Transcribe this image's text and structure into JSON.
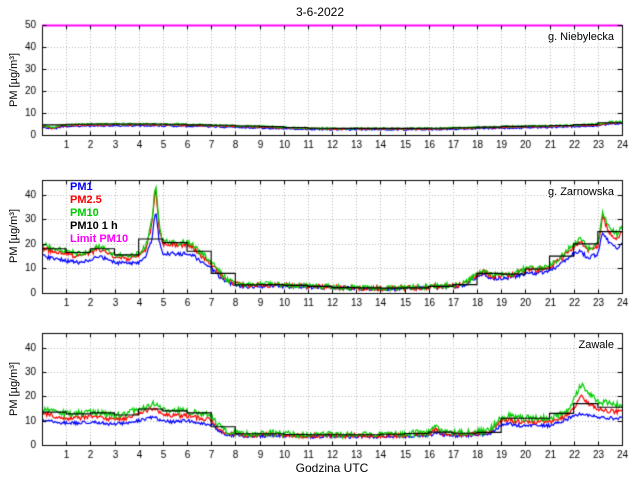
{
  "title": "3-6-2022",
  "xlabel": "Godzina UTC",
  "ylabel": "PM [µg/m³]",
  "legend": {
    "items": [
      {
        "label": "PM1",
        "color": "#0000ff"
      },
      {
        "label": "PM2.5",
        "color": "#ff0000"
      },
      {
        "label": "PM10",
        "color": "#00cc00"
      },
      {
        "label": "PM10 1 h",
        "color": "#000000"
      },
      {
        "label": "Limit PM10",
        "color": "#ff00ff"
      }
    ]
  },
  "chart_data": [
    {
      "type": "line",
      "station": "g. Niebylecka",
      "xlim": [
        0,
        24
      ],
      "ylim": [
        0,
        50
      ],
      "xticks": [
        1,
        2,
        3,
        4,
        5,
        6,
        7,
        8,
        9,
        10,
        11,
        12,
        13,
        14,
        15,
        16,
        17,
        18,
        19,
        20,
        21,
        22,
        23,
        24
      ],
      "yticks": [
        0,
        10,
        20,
        30,
        40,
        50
      ],
      "grid": true,
      "series": [
        {
          "name": "PM1",
          "color": "#0000ff",
          "noise": 0.35,
          "x": [
            0,
            0.5,
            0.8,
            1,
            2,
            3,
            4,
            5,
            6,
            7,
            8,
            9,
            10,
            11,
            12,
            13,
            14,
            15,
            16,
            17,
            18,
            19,
            20,
            21,
            22,
            23,
            23.5,
            24
          ],
          "values": [
            3.8,
            2.7,
            3.8,
            3.9,
            4.2,
            4.2,
            4.2,
            4.2,
            4,
            3.8,
            3.5,
            3.3,
            2.9,
            2.7,
            2.5,
            2.5,
            2.5,
            2.5,
            2.5,
            2.7,
            2.9,
            3.1,
            3.3,
            3.5,
            3.8,
            4.2,
            5,
            5.2
          ]
        },
        {
          "name": "PM2.5",
          "color": "#ff0000",
          "noise": 0.35,
          "x": [
            0,
            0.5,
            0.8,
            1,
            2,
            3,
            4,
            5,
            6,
            7,
            8,
            9,
            10,
            11,
            12,
            13,
            14,
            15,
            16,
            17,
            18,
            19,
            20,
            21,
            22,
            23,
            23.5,
            24
          ],
          "values": [
            4.2,
            3,
            4.2,
            4.3,
            4.6,
            4.6,
            4.6,
            4.6,
            4.4,
            4.2,
            3.9,
            3.7,
            3.2,
            3,
            2.8,
            2.8,
            2.8,
            2.8,
            2.8,
            3,
            3.2,
            3.5,
            3.7,
            3.9,
            4.2,
            4.6,
            5.5,
            5.6
          ]
        },
        {
          "name": "PM10",
          "color": "#00cc00",
          "noise": 0.4,
          "x": [
            0,
            0.5,
            0.8,
            1,
            2,
            3,
            4,
            5,
            6,
            7,
            8,
            9,
            10,
            11,
            12,
            13,
            14,
            15,
            16,
            17,
            18,
            19,
            20,
            21,
            22,
            23,
            23.5,
            24
          ],
          "values": [
            4.5,
            3.2,
            4.5,
            4.6,
            5,
            5,
            5,
            5,
            4.8,
            4.5,
            4.2,
            4,
            3.5,
            3.2,
            3,
            3,
            3,
            3,
            3,
            3.2,
            3.5,
            3.8,
            4,
            4.2,
            4.5,
            5,
            6,
            6
          ]
        },
        {
          "name": "PM10 1 h",
          "type": "step",
          "color": "#000000",
          "hourly": [
            4.6,
            4.9,
            5,
            5,
            5,
            4.9,
            4.6,
            4.4,
            4.1,
            3.8,
            3.4,
            3.1,
            3,
            3,
            3,
            3,
            3.1,
            3.3,
            3.6,
            3.9,
            4.1,
            4.3,
            4.7,
            5.6
          ]
        },
        {
          "name": "Limit PM10",
          "type": "hline",
          "color": "#ff00ff",
          "value": 50
        }
      ]
    },
    {
      "type": "line",
      "station": "g. Zarnowska",
      "xlim": [
        0,
        24
      ],
      "ylim": [
        0,
        46
      ],
      "xticks": [
        1,
        2,
        3,
        4,
        5,
        6,
        7,
        8,
        9,
        10,
        11,
        12,
        13,
        14,
        15,
        16,
        17,
        18,
        19,
        20,
        21,
        22,
        23,
        24
      ],
      "yticks": [
        0,
        10,
        20,
        30,
        40
      ],
      "grid": true,
      "series": [
        {
          "name": "PM1",
          "color": "#0000ff",
          "noise": 0.8,
          "x": [
            0,
            0.5,
            1,
            1.5,
            2,
            2.3,
            2.6,
            3,
            3.5,
            4,
            4.3,
            4.55,
            4.7,
            4.85,
            5,
            5.3,
            5.6,
            6,
            6.3,
            6.6,
            7,
            7.3,
            7.6,
            8,
            8.5,
            9,
            9.5,
            10,
            10.5,
            11,
            11.5,
            12,
            12.5,
            13,
            13.5,
            14,
            14.5,
            15,
            15.5,
            16,
            16.5,
            17,
            17.5,
            18,
            18.3,
            18.6,
            19,
            19.5,
            20,
            20.5,
            21,
            21.5,
            22,
            22.3,
            22.6,
            23,
            23.2,
            23.5,
            23.8,
            24
          ],
          "values": [
            15,
            14,
            13,
            12.5,
            13,
            15,
            14,
            12.5,
            12,
            12.5,
            15,
            22,
            34,
            21,
            16,
            16,
            16,
            16,
            15,
            12.5,
            10,
            7,
            4.5,
            3.2,
            2.6,
            2.8,
            2.8,
            2.8,
            2.6,
            2.4,
            2.3,
            2.1,
            1.9,
            1.8,
            1.7,
            1.7,
            1.7,
            1.8,
            1.9,
            2.1,
            2.4,
            2.6,
            3.2,
            6.5,
            7.5,
            6,
            6,
            6.5,
            8,
            8,
            9,
            12,
            16,
            17,
            14,
            16,
            25,
            20,
            18,
            20
          ]
        },
        {
          "name": "PM2.5",
          "color": "#ff0000",
          "noise": 1.0,
          "x": [
            0,
            0.5,
            1,
            1.5,
            2,
            2.3,
            2.6,
            3,
            3.5,
            4,
            4.3,
            4.55,
            4.7,
            4.85,
            5,
            5.3,
            5.6,
            6,
            6.3,
            6.6,
            7,
            7.3,
            7.6,
            8,
            8.5,
            9,
            9.5,
            10,
            10.5,
            11,
            11.5,
            12,
            12.5,
            13,
            13.5,
            14,
            14.5,
            15,
            15.5,
            16,
            16.5,
            17,
            17.5,
            18,
            18.3,
            18.6,
            19,
            19.5,
            20,
            20.5,
            21,
            21.5,
            22,
            22.3,
            22.6,
            23,
            23.2,
            23.5,
            23.8,
            24
          ],
          "values": [
            18,
            17,
            16,
            15,
            16,
            18,
            17,
            15,
            14,
            15,
            18,
            28,
            43,
            26,
            20,
            20,
            19,
            20,
            18,
            15,
            12,
            8.5,
            5.5,
            3.7,
            3,
            3.2,
            3.2,
            3.2,
            3,
            2.8,
            2.6,
            2.4,
            2.2,
            2,
            1.9,
            1.9,
            1.9,
            2,
            2.2,
            2.4,
            2.8,
            3,
            3.7,
            7.5,
            8.5,
            7,
            7,
            7.5,
            9.5,
            9.5,
            10.5,
            14,
            19,
            21,
            17,
            19,
            31,
            24,
            22,
            25
          ]
        },
        {
          "name": "PM10",
          "color": "#00cc00",
          "noise": 1.1,
          "x": [
            0,
            0.5,
            1,
            1.5,
            2,
            2.3,
            2.6,
            3,
            3.5,
            4,
            4.3,
            4.55,
            4.7,
            4.85,
            5,
            5.3,
            5.6,
            6,
            6.3,
            6.6,
            7,
            7.3,
            7.6,
            8,
            8.5,
            9,
            9.5,
            10,
            10.5,
            11,
            11.5,
            12,
            12.5,
            13,
            13.5,
            14,
            14.5,
            15,
            15.5,
            16,
            16.5,
            17,
            17.5,
            18,
            18.3,
            18.6,
            19,
            19.5,
            20,
            20.5,
            21,
            21.5,
            22,
            22.3,
            22.6,
            23,
            23.2,
            23.5,
            23.8,
            24
          ],
          "values": [
            20,
            18,
            17,
            16,
            17,
            19,
            18,
            16,
            15,
            16,
            19,
            30,
            45,
            28,
            21,
            21,
            20,
            21,
            19,
            16,
            13,
            9,
            6,
            4,
            3.2,
            3.5,
            3.5,
            3.5,
            3.2,
            3,
            2.8,
            2.6,
            2.3,
            2.2,
            2,
            2,
            2,
            2.2,
            2.4,
            2.6,
            3,
            3.2,
            4,
            8,
            9,
            7.5,
            7.5,
            8,
            10,
            10,
            11,
            15,
            20,
            22,
            18,
            20,
            33,
            26,
            24,
            27
          ]
        },
        {
          "name": "PM10 1 h",
          "type": "step",
          "color": "#000000",
          "hourly": [
            18,
            16.5,
            18,
            15.5,
            22,
            20.5,
            17,
            8,
            3.3,
            3.4,
            3.1,
            2.7,
            2.2,
            2.1,
            2,
            2.1,
            2.7,
            3.4,
            8,
            7.7,
            9.8,
            15,
            20,
            25
          ]
        },
        {
          "name": "Limit PM10",
          "type": "hline",
          "color": "#ff00ff",
          "value": 50
        }
      ]
    },
    {
      "type": "line",
      "station": "Zawale",
      "xlim": [
        0,
        24
      ],
      "ylim": [
        0,
        46
      ],
      "xticks": [
        1,
        2,
        3,
        4,
        5,
        6,
        7,
        8,
        9,
        10,
        11,
        12,
        13,
        14,
        15,
        16,
        17,
        18,
        19,
        20,
        21,
        22,
        23,
        24
      ],
      "yticks": [
        0,
        10,
        20,
        30,
        40
      ],
      "grid": true,
      "series": [
        {
          "name": "PM1",
          "color": "#0000ff",
          "noise": 0.7,
          "x": [
            0,
            0.5,
            1,
            1.5,
            2,
            2.5,
            3,
            3.5,
            4,
            4.3,
            4.6,
            5,
            5.3,
            5.6,
            6,
            6.5,
            7,
            7.3,
            7.6,
            8,
            8.5,
            9,
            9.5,
            10,
            10.5,
            11,
            11.5,
            12,
            12.5,
            13,
            13.5,
            14,
            14.5,
            15,
            15.5,
            16,
            16.3,
            16.6,
            17,
            17.5,
            18,
            18.5,
            19,
            19.3,
            19.6,
            20,
            20.5,
            21,
            21.3,
            21.6,
            22,
            22.3,
            22.6,
            23,
            23.5,
            24
          ],
          "values": [
            10,
            9.5,
            9,
            9,
            9.5,
            9,
            8.5,
            9,
            10,
            11,
            11.5,
            10,
            9.5,
            9.5,
            10,
            9,
            8.5,
            6,
            4.5,
            4,
            3.6,
            3.6,
            4,
            3.6,
            3.6,
            3.3,
            3.6,
            3.6,
            3.3,
            3.6,
            3.3,
            3.6,
            3.6,
            3.6,
            3.9,
            3.9,
            5,
            3.9,
            3.9,
            3.9,
            4.2,
            4.5,
            8,
            9,
            8,
            8,
            8,
            8,
            9,
            10,
            12,
            13,
            12,
            11.5,
            11,
            11
          ]
        },
        {
          "name": "PM2.5",
          "color": "#ff0000",
          "noise": 0.9,
          "x": [
            0,
            0.5,
            1,
            1.5,
            2,
            2.5,
            3,
            3.5,
            4,
            4.3,
            4.6,
            5,
            5.3,
            5.6,
            6,
            6.5,
            7,
            7.3,
            7.6,
            8,
            8.5,
            9,
            9.5,
            10,
            10.5,
            11,
            11.5,
            12,
            12.5,
            13,
            13.5,
            14,
            14.5,
            15,
            15.5,
            16,
            16.3,
            16.6,
            17,
            17.5,
            18,
            18.5,
            19,
            19.3,
            19.6,
            20,
            20.5,
            21,
            21.3,
            21.6,
            22,
            22.3,
            22.6,
            23,
            23.5,
            24
          ],
          "values": [
            13,
            12,
            11,
            11,
            12,
            11,
            10.5,
            11,
            13,
            14,
            15,
            13,
            12,
            12,
            12,
            11,
            10.5,
            7,
            5,
            4.5,
            4,
            4,
            4.5,
            4,
            4,
            3.6,
            4,
            4,
            3.6,
            4,
            3.6,
            4,
            4,
            4,
            4.4,
            4.4,
            6.5,
            4.4,
            4.4,
            4.4,
            4.8,
            5.2,
            9.5,
            10.5,
            9.5,
            9.5,
            9.5,
            9.5,
            10.5,
            11.5,
            15,
            20,
            17,
            15,
            14,
            13.5
          ]
        },
        {
          "name": "PM10",
          "color": "#00cc00",
          "noise": 1.3,
          "x": [
            0,
            0.5,
            1,
            1.5,
            2,
            2.5,
            3,
            3.5,
            4,
            4.3,
            4.6,
            5,
            5.3,
            5.6,
            6,
            6.5,
            7,
            7.3,
            7.6,
            8,
            8.5,
            9,
            9.5,
            10,
            10.5,
            11,
            11.5,
            12,
            12.5,
            13,
            13.5,
            14,
            14.5,
            15,
            15.5,
            16,
            16.3,
            16.6,
            17,
            17.5,
            18,
            18.5,
            19,
            19.3,
            19.6,
            20,
            20.5,
            21,
            21.3,
            21.6,
            22,
            22.3,
            22.6,
            23,
            23.5,
            24
          ],
          "values": [
            15,
            14,
            13,
            13,
            14,
            13,
            12,
            13,
            15,
            16,
            17,
            15,
            14,
            14,
            14,
            13,
            12,
            8,
            6,
            5,
            4.5,
            4.5,
            5,
            4.5,
            4.5,
            4,
            4.5,
            4.5,
            4,
            4.5,
            4,
            4.5,
            4.5,
            4.5,
            5,
            5,
            8,
            5,
            5,
            5,
            5.5,
            6,
            11,
            12,
            11,
            11,
            11,
            11,
            12,
            13,
            18,
            25,
            21,
            18,
            17,
            16
          ]
        },
        {
          "name": "PM10 1 h",
          "type": "step",
          "color": "#000000",
          "hourly": [
            13.5,
            12.8,
            13.2,
            12.3,
            14.8,
            14,
            13.2,
            7.5,
            4.6,
            4.6,
            4.3,
            4.2,
            4.2,
            4.2,
            4.4,
            4.7,
            5.3,
            4.8,
            5.2,
            11,
            11,
            13,
            17,
            15.5
          ]
        },
        {
          "name": "Limit PM10",
          "type": "hline",
          "color": "#ff00ff",
          "value": 50
        }
      ]
    }
  ]
}
